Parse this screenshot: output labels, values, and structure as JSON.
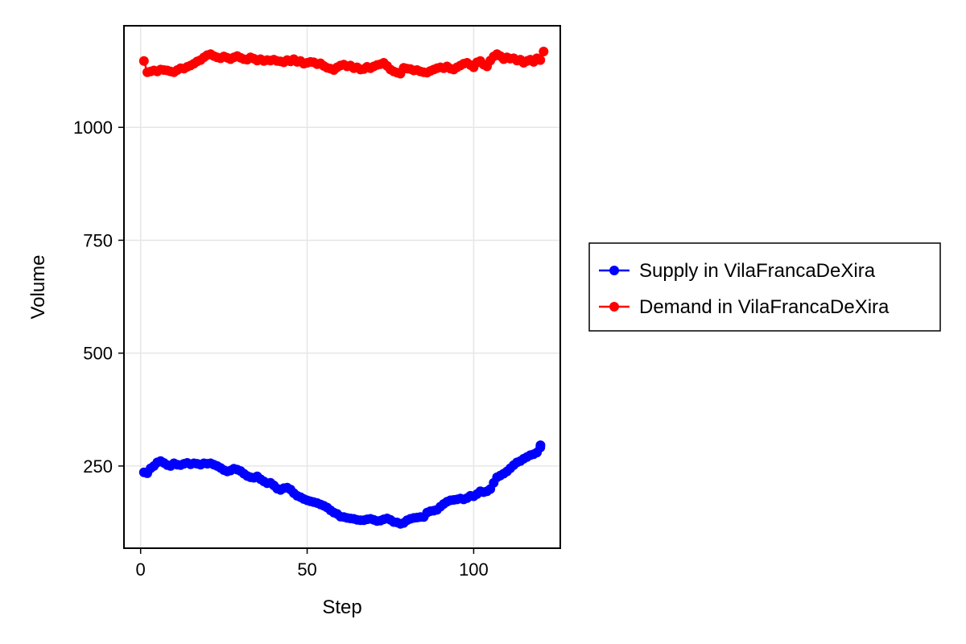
{
  "chart_data": {
    "type": "line",
    "xlabel": "Step",
    "ylabel": "Volume",
    "xlim": [
      -5,
      126
    ],
    "ylim": [
      68,
      1225
    ],
    "xticks": [
      0,
      50,
      100
    ],
    "yticks": [
      250,
      500,
      750,
      1000
    ],
    "grid": true,
    "legend_position": "right",
    "series": [
      {
        "name": "Supply in VilaFrancaDeXira",
        "color": "#0000ff",
        "x": [
          1,
          2,
          3,
          4,
          5,
          6,
          7,
          8,
          9,
          10,
          11,
          12,
          13,
          14,
          15,
          16,
          17,
          18,
          19,
          20,
          21,
          22,
          23,
          24,
          25,
          26,
          27,
          28,
          29,
          30,
          31,
          32,
          33,
          34,
          35,
          36,
          37,
          38,
          39,
          40,
          41,
          42,
          43,
          44,
          45,
          46,
          47,
          48,
          49,
          50,
          51,
          52,
          53,
          54,
          55,
          56,
          57,
          58,
          59,
          60,
          61,
          62,
          63,
          64,
          65,
          66,
          67,
          68,
          69,
          70,
          71,
          72,
          73,
          74,
          75,
          76,
          77,
          78,
          79,
          80,
          81,
          82,
          83,
          84,
          85,
          86,
          87,
          88,
          89,
          90,
          91,
          92,
          93,
          94,
          95,
          96,
          97,
          98,
          99,
          100,
          101,
          102,
          103,
          104,
          105,
          106,
          107,
          108,
          109,
          110,
          111,
          112,
          113,
          114,
          115,
          116,
          117,
          118,
          119,
          120
        ],
        "y": [
          236,
          234,
          245,
          250,
          258,
          261,
          257,
          252,
          250,
          256,
          253,
          252,
          255,
          257,
          254,
          256,
          255,
          253,
          256,
          255,
          256,
          253,
          250,
          246,
          241,
          238,
          240,
          244,
          242,
          239,
          233,
          228,
          225,
          224,
          227,
          221,
          216,
          212,
          213,
          207,
          200,
          197,
          201,
          202,
          198,
          190,
          184,
          181,
          177,
          174,
          172,
          170,
          168,
          165,
          162,
          158,
          152,
          147,
          144,
          138,
          137,
          135,
          134,
          133,
          131,
          130,
          130,
          132,
          133,
          131,
          128,
          129,
          132,
          134,
          131,
          126,
          125,
          122,
          124,
          130,
          133,
          135,
          136,
          137,
          137,
          147,
          150,
          151,
          153,
          160,
          166,
          171,
          174,
          175,
          176,
          178,
          176,
          179,
          184,
          183,
          188,
          194,
          192,
          194,
          199,
          213,
          225,
          229,
          233,
          238,
          245,
          252,
          258,
          261,
          266,
          270,
          274,
          276,
          280,
          291
        ],
        "y_tail": [
          296
        ]
      },
      {
        "name": "Demand in VilaFrancaDeXira",
        "color": "#ff0000",
        "x": [
          1,
          2,
          3,
          4,
          5,
          6,
          7,
          8,
          9,
          10,
          11,
          12,
          13,
          14,
          15,
          16,
          17,
          18,
          19,
          20,
          21,
          22,
          23,
          24,
          25,
          26,
          27,
          28,
          29,
          30,
          31,
          32,
          33,
          34,
          35,
          36,
          37,
          38,
          39,
          40,
          41,
          42,
          43,
          44,
          45,
          46,
          47,
          48,
          49,
          50,
          51,
          52,
          53,
          54,
          55,
          56,
          57,
          58,
          59,
          60,
          61,
          62,
          63,
          64,
          65,
          66,
          67,
          68,
          69,
          70,
          71,
          72,
          73,
          74,
          75,
          76,
          77,
          78,
          79,
          80,
          81,
          82,
          83,
          84,
          85,
          86,
          87,
          88,
          89,
          90,
          91,
          92,
          93,
          94,
          95,
          96,
          97,
          98,
          99,
          100,
          101,
          102,
          103,
          104,
          105,
          106,
          107,
          108,
          109,
          110,
          111,
          112,
          113,
          114,
          115,
          116,
          117,
          118,
          119,
          120,
          121
        ],
        "y": [
          1147,
          1122,
          1124,
          1126,
          1124,
          1128,
          1127,
          1126,
          1124,
          1122,
          1127,
          1131,
          1130,
          1134,
          1137,
          1141,
          1146,
          1149,
          1155,
          1160,
          1162,
          1158,
          1155,
          1153,
          1157,
          1154,
          1151,
          1155,
          1158,
          1154,
          1151,
          1150,
          1155,
          1152,
          1148,
          1151,
          1147,
          1149,
          1148,
          1150,
          1147,
          1146,
          1144,
          1149,
          1146,
          1151,
          1145,
          1147,
          1141,
          1143,
          1145,
          1144,
          1140,
          1142,
          1136,
          1132,
          1130,
          1127,
          1133,
          1137,
          1139,
          1135,
          1137,
          1131,
          1133,
          1128,
          1129,
          1134,
          1131,
          1135,
          1138,
          1140,
          1143,
          1136,
          1128,
          1124,
          1121,
          1119,
          1132,
          1130,
          1129,
          1126,
          1127,
          1124,
          1122,
          1121,
          1125,
          1128,
          1131,
          1133,
          1131,
          1135,
          1130,
          1128,
          1133,
          1137,
          1141,
          1143,
          1138,
          1133,
          1144,
          1147,
          1139,
          1135,
          1148,
          1157,
          1162,
          1158,
          1151,
          1155,
          1152,
          1153,
          1148,
          1150,
          1143,
          1147,
          1150,
          1145,
          1153,
          1149,
          1168
        ]
      }
    ]
  }
}
